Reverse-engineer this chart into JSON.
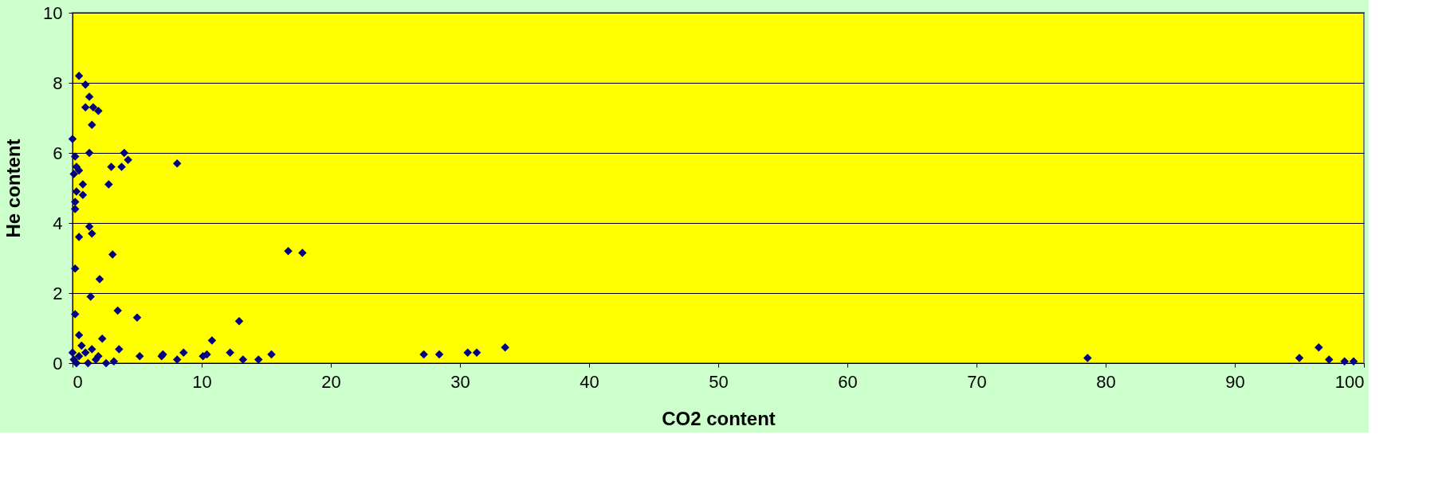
{
  "chart_data": {
    "type": "scatter",
    "xlabel": "CO2 content",
    "ylabel": "He content",
    "x": [
      0.5,
      1.0,
      1.3,
      1.0,
      1.6,
      2.0,
      1.5,
      0.0,
      1.3,
      3.0,
      4.0,
      4.3,
      3.8,
      8.1,
      0.2,
      0.3,
      0.1,
      0.5,
      2.8,
      0.8,
      0.3,
      0.8,
      0.2,
      0.2,
      1.3,
      1.5,
      0.5,
      3.1,
      16.7,
      17.8,
      0.2,
      2.1,
      1.4,
      3.5,
      0.2,
      5.0,
      12.9,
      10.8,
      0.5,
      2.3,
      3.6,
      0.0,
      0.1,
      0.5,
      1.0,
      1.5,
      2.0,
      2.6,
      3.2,
      5.2,
      6.9,
      7.0,
      8.1,
      8.6,
      10.1,
      10.4,
      12.2,
      13.2,
      14.4,
      15.4,
      27.2,
      28.4,
      30.6,
      31.3,
      33.5,
      78.6,
      95.0,
      96.5,
      97.3,
      98.5,
      99.2,
      0.3,
      1.2,
      0.7,
      1.8
    ],
    "series": [
      {
        "color": "#000080",
        "values": [
          8.2,
          7.95,
          7.6,
          7.3,
          7.3,
          7.2,
          6.8,
          6.4,
          6.0,
          5.6,
          6.0,
          5.8,
          5.6,
          5.7,
          5.9,
          5.6,
          5.4,
          5.5,
          5.1,
          5.1,
          4.9,
          4.8,
          4.6,
          4.4,
          3.9,
          3.7,
          3.6,
          3.1,
          3.2,
          3.15,
          2.7,
          2.4,
          1.9,
          1.5,
          1.4,
          1.3,
          1.2,
          0.65,
          0.8,
          0.7,
          0.4,
          0.3,
          0.1,
          0.2,
          0.3,
          0.4,
          0.2,
          0.0,
          0.05,
          0.2,
          0.2,
          0.25,
          0.1,
          0.3,
          0.2,
          0.25,
          0.3,
          0.1,
          0.1,
          0.25,
          0.25,
          0.25,
          0.3,
          0.3,
          0.45,
          0.15,
          0.15,
          0.45,
          0.1,
          0.05,
          0.05,
          0.0,
          0.0,
          0.5,
          0.1
        ]
      }
    ],
    "xlim": [
      0,
      100
    ],
    "xticks": [
      0,
      10,
      20,
      30,
      40,
      50,
      60,
      70,
      80,
      90,
      100
    ],
    "ylim": [
      0,
      10
    ],
    "yticks": [
      0,
      2,
      4,
      6,
      8,
      10
    ],
    "grid": "y",
    "marker": "diamond"
  }
}
